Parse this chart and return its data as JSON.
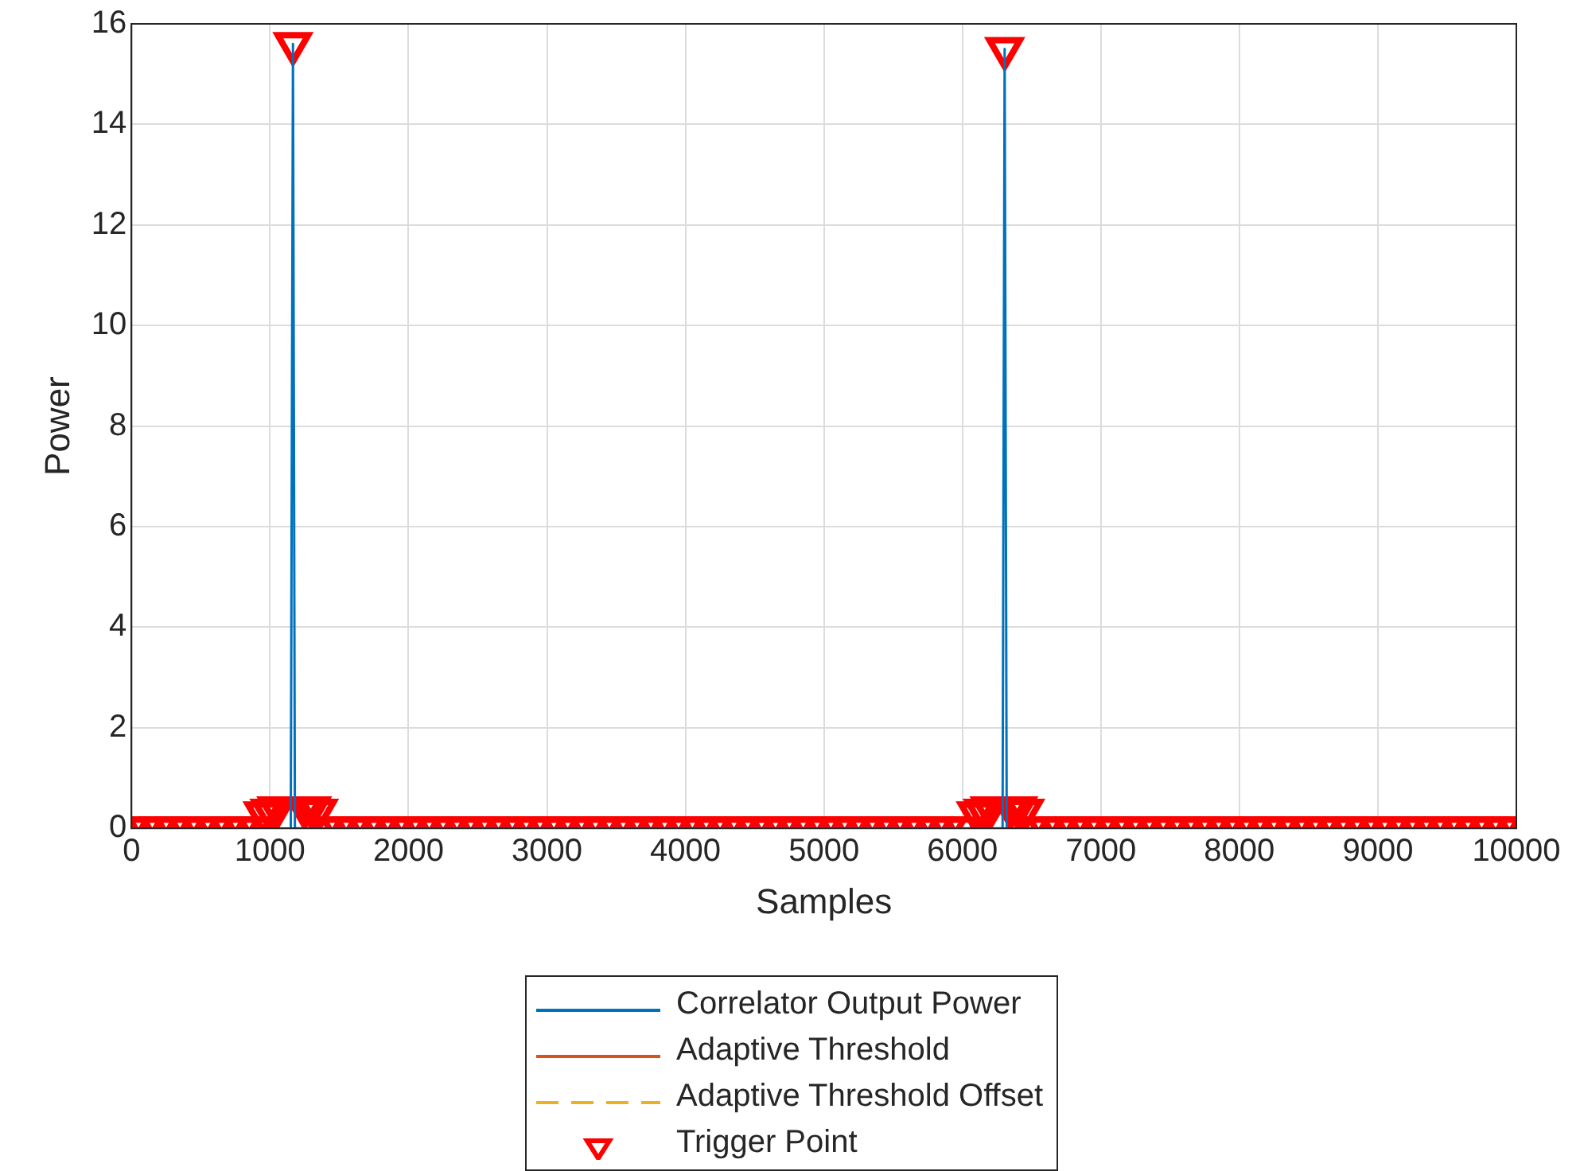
{
  "chart_data": {
    "type": "line",
    "xlabel": "Samples",
    "ylabel": "Power",
    "xlim": [
      0,
      10000
    ],
    "xticks": [
      0,
      1000,
      2000,
      3000,
      4000,
      5000,
      6000,
      7000,
      8000,
      9000,
      10000
    ],
    "ylim": [
      0,
      16
    ],
    "yticks": [
      0,
      2,
      4,
      6,
      8,
      10,
      12,
      14,
      16
    ],
    "grid": true,
    "legend": "bottom",
    "series": [
      {
        "name": "Correlator Output Power",
        "color": "#0072bd",
        "x": [
          1150,
          1166,
          1180,
          6290,
          6305,
          6320
        ],
        "values": [
          0,
          15.6,
          0,
          0,
          15.5,
          0
        ]
      },
      {
        "name": "Adaptive Threshold",
        "color": "#d95319"
      },
      {
        "name": "Adaptive Threshold Offset",
        "color": "#edb120",
        "line_style": "dashed"
      },
      {
        "name": "Trigger Point",
        "type": "scatter",
        "color": "#ff0000",
        "marker": "triangle",
        "x": [
          0,
          100,
          200,
          300,
          400,
          500,
          600,
          700,
          800,
          900,
          950,
          1000,
          1050,
          1166,
          1250,
          1300,
          1350,
          1400,
          1500,
          1600,
          1700,
          1800,
          1900,
          2000,
          2100,
          2200,
          2300,
          2400,
          2500,
          2600,
          2700,
          2800,
          2900,
          3000,
          3100,
          3200,
          3300,
          3400,
          3500,
          3600,
          3700,
          3800,
          3900,
          4000,
          4100,
          4200,
          4300,
          4400,
          4500,
          4600,
          4700,
          4800,
          4900,
          5000,
          5100,
          5200,
          5300,
          5400,
          5500,
          5600,
          5700,
          5800,
          5900,
          6000,
          6100,
          6150,
          6200,
          6305,
          6350,
          6400,
          6450,
          6500,
          6600,
          6700,
          6800,
          6900,
          7000,
          7100,
          7200,
          7300,
          7400,
          7500,
          7600,
          7700,
          7800,
          7900,
          8000,
          8100,
          8200,
          8300,
          8400,
          8500,
          8600,
          8700,
          8800,
          8900,
          9000,
          9100,
          9200,
          9300,
          9400,
          9500,
          9600,
          9700,
          9800,
          9900,
          10000
        ],
        "values": [
          0,
          0,
          0,
          0,
          0,
          0,
          0,
          0,
          0,
          0,
          0.3,
          0.35,
          0.4,
          15.6,
          0.4,
          0.4,
          0.35,
          0,
          0,
          0,
          0,
          0,
          0,
          0,
          0,
          0,
          0,
          0,
          0,
          0,
          0,
          0,
          0,
          0,
          0,
          0,
          0,
          0,
          0,
          0,
          0,
          0,
          0,
          0,
          0,
          0,
          0,
          0,
          0,
          0,
          0,
          0,
          0,
          0,
          0,
          0,
          0,
          0,
          0,
          0,
          0,
          0,
          0,
          0,
          0.3,
          0.35,
          0.4,
          15.5,
          0.4,
          0.4,
          0.35,
          0,
          0,
          0,
          0,
          0,
          0,
          0,
          0,
          0,
          0,
          0,
          0,
          0,
          0,
          0,
          0,
          0,
          0,
          0,
          0,
          0,
          0,
          0,
          0,
          0,
          0,
          0,
          0,
          0,
          0,
          0,
          0,
          0,
          0,
          0,
          0
        ]
      }
    ]
  }
}
